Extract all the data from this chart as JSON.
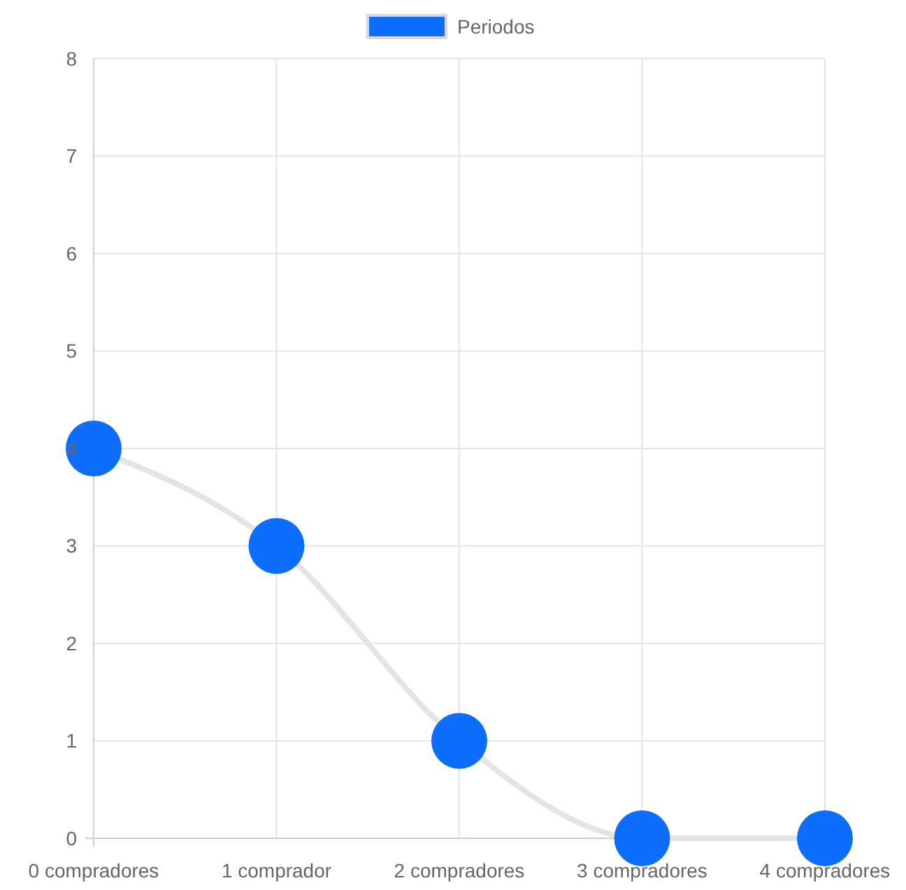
{
  "chart_data": {
    "type": "line",
    "categories": [
      "0 compradores",
      "1 comprador",
      "2 compradores",
      "3 compradores",
      "4 compradores"
    ],
    "series": [
      {
        "name": "Periodos",
        "color": "#e4e4e4",
        "colors": [
          "#0d6efd",
          "#0d6efd",
          "#0d6efd",
          "#0d6efd",
          "#0d6efd"
        ],
        "values": [
          4,
          3,
          1,
          0,
          0
        ]
      }
    ],
    "ylim": [
      0,
      8
    ],
    "yticks": [
      0,
      1,
      2,
      3,
      4,
      5,
      6,
      7,
      8
    ],
    "grid": true,
    "legend": "top",
    "marker": "circle",
    "line_style": "solid"
  }
}
